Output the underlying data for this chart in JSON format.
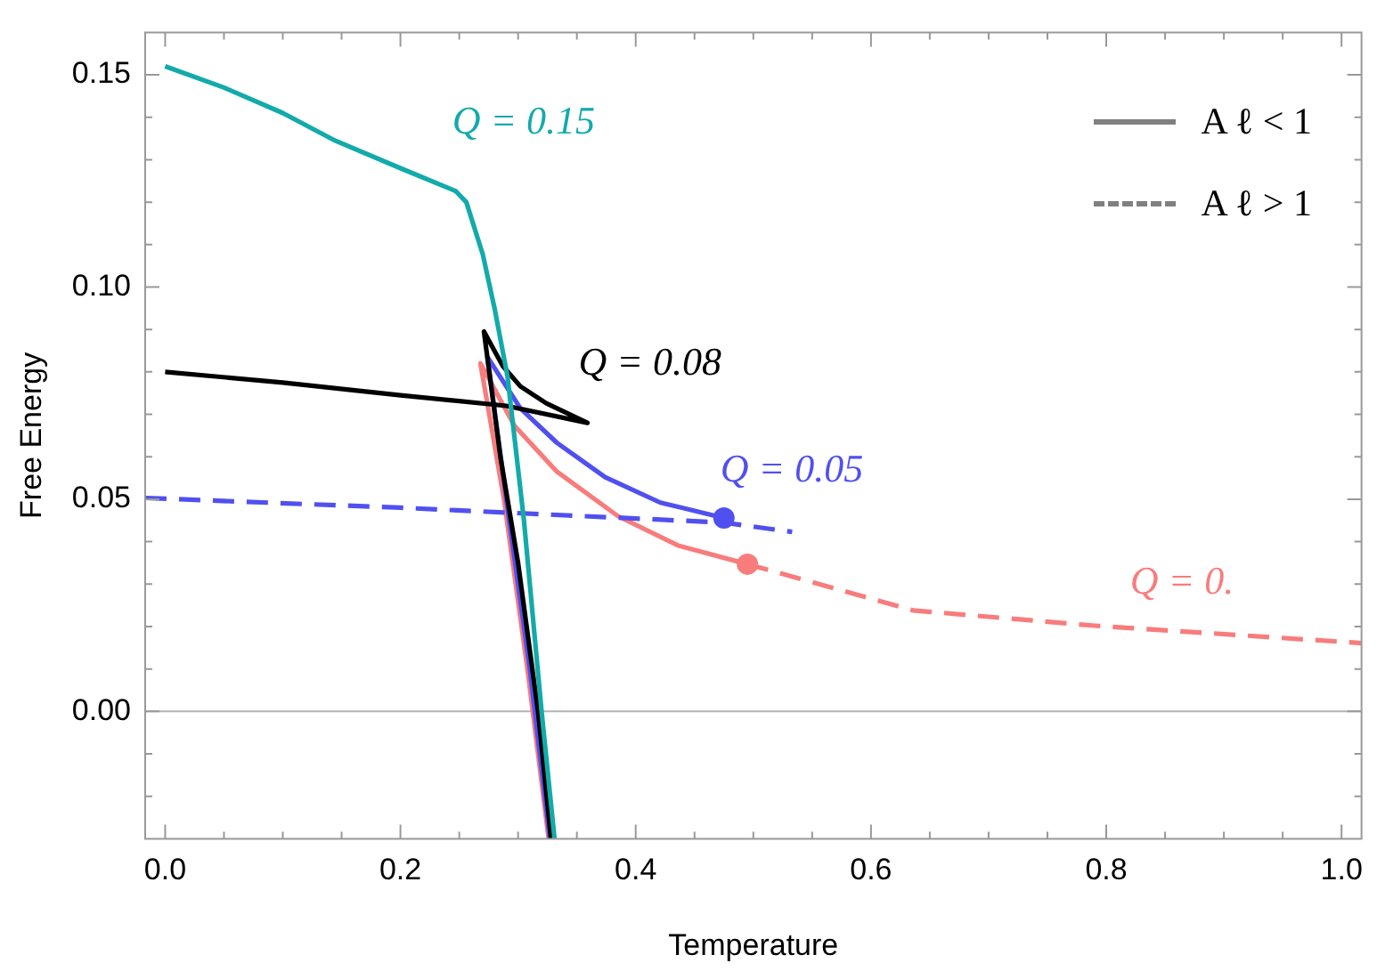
{
  "chart_data": {
    "type": "line",
    "xlabel": "Temperature",
    "ylabel": "Free Energy",
    "xlim": [
      -0.017,
      1.017
    ],
    "ylim": [
      -0.03,
      0.16
    ],
    "xticks": [
      {
        "value": 0,
        "label": "0.0"
      },
      {
        "value": 0.05,
        "label": null
      },
      {
        "value": 0.1,
        "label": null
      },
      {
        "value": 0.15,
        "label": null
      },
      {
        "value": 0.2,
        "label": "0.2"
      },
      {
        "value": 0.25,
        "label": null
      },
      {
        "value": 0.3,
        "label": null
      },
      {
        "value": 0.35,
        "label": null
      },
      {
        "value": 0.4,
        "label": "0.4"
      },
      {
        "value": 0.45,
        "label": null
      },
      {
        "value": 0.5,
        "label": null
      },
      {
        "value": 0.55,
        "label": null
      },
      {
        "value": 0.6,
        "label": "0.6"
      },
      {
        "value": 0.65,
        "label": null
      },
      {
        "value": 0.7,
        "label": null
      },
      {
        "value": 0.75,
        "label": null
      },
      {
        "value": 0.8,
        "label": "0.8"
      },
      {
        "value": 0.85,
        "label": null
      },
      {
        "value": 0.9,
        "label": null
      },
      {
        "value": 0.95,
        "label": null
      },
      {
        "value": 1.0,
        "label": "1.0"
      }
    ],
    "yticks": [
      {
        "value": -0.02,
        "label": null
      },
      {
        "value": -0.01,
        "label": null
      },
      {
        "value": 0,
        "label": "0.00"
      },
      {
        "value": 0.01,
        "label": null
      },
      {
        "value": 0.02,
        "label": null
      },
      {
        "value": 0.03,
        "label": null
      },
      {
        "value": 0.04,
        "label": null
      },
      {
        "value": 0.05,
        "label": "0.05"
      },
      {
        "value": 0.06,
        "label": null
      },
      {
        "value": 0.07,
        "label": null
      },
      {
        "value": 0.08,
        "label": null
      },
      {
        "value": 0.09,
        "label": null
      },
      {
        "value": 0.1,
        "label": "0.10"
      },
      {
        "value": 0.11,
        "label": null
      },
      {
        "value": 0.12,
        "label": null
      },
      {
        "value": 0.13,
        "label": null
      },
      {
        "value": 0.14,
        "label": null
      },
      {
        "value": 0.15,
        "label": "0.15"
      }
    ],
    "grid": false,
    "legend": false,
    "ref_lines": [
      {
        "axis": "y",
        "value": 0,
        "color": "#b4b4b4"
      }
    ],
    "series": [
      {
        "type": "line",
        "name": "Q = 0.15",
        "color": "#13aaaa",
        "line_style": "solid",
        "x": [
          0,
          0.05,
          0.1,
          0.143,
          0.2,
          0.247,
          0.256,
          0.27,
          0.28,
          0.291,
          0.305,
          0.32,
          0.331
        ],
        "values": [
          0.152,
          0.147,
          0.141,
          0.1347,
          0.128,
          0.1226,
          0.12,
          0.1077,
          0.095,
          0.079,
          0.045,
          0,
          -0.03
        ]
      },
      {
        "type": "line",
        "name": "Q = 0.08",
        "color": "#000000",
        "line_style": "solid",
        "x": [
          0,
          0.1,
          0.2,
          0.29,
          0.359,
          0.324,
          0.302,
          0.287,
          0.271,
          0.285,
          0.3,
          0.317,
          0.328
        ],
        "values": [
          0.08,
          0.0775,
          0.0745,
          0.072,
          0.068,
          0.0726,
          0.0766,
          0.0814,
          0.0895,
          0.06,
          0.035,
          0,
          -0.03
        ]
      },
      {
        "type": "line",
        "name": "Q = 0.05",
        "color": "#5050f0",
        "line_style": "solid",
        "x": [
          0.327,
          0.31,
          0.29,
          0.274,
          0.302,
          0.333,
          0.374,
          0.421,
          0.475
        ],
        "values": [
          -0.03,
          0.01,
          0.05,
          0.0835,
          0.0714,
          0.0633,
          0.0552,
          0.0492,
          0.0456
        ]
      },
      {
        "type": "line",
        "color": "#5050f0",
        "line_style": "dashed",
        "x": [
          -0.017,
          0.2,
          0.475,
          0.533
        ],
        "values": [
          0.0503,
          0.048,
          0.0445,
          0.0423
        ]
      },
      {
        "type": "line",
        "color": "#f87c7c",
        "line_style": "solid",
        "x": [
          0.326,
          0.308,
          0.288,
          0.268,
          0.297,
          0.333,
          0.385,
          0.436,
          0.495
        ],
        "values": [
          -0.03,
          0.01,
          0.05,
          0.082,
          0.0673,
          0.0565,
          0.046,
          0.0391,
          0.0347
        ]
      },
      {
        "type": "line",
        "name": "Q = 0.",
        "color": "#f87c7c",
        "line_style": "dashed",
        "x": [
          0.495,
          0.636,
          0.79,
          1.017
        ],
        "values": [
          0.0347,
          0.0238,
          0.0202,
          0.0161
        ]
      },
      {
        "type": "scatter",
        "color": "#5050f0",
        "marker": "circle",
        "x": [
          0.475
        ],
        "values": [
          0.0456
        ]
      },
      {
        "type": "scatter",
        "color": "#f87c7c",
        "marker": "circle",
        "x": [
          0.495
        ],
        "values": [
          0.0347
        ]
      }
    ],
    "annotations": [
      "A ℓ < 1",
      "A ℓ > 1"
    ]
  }
}
